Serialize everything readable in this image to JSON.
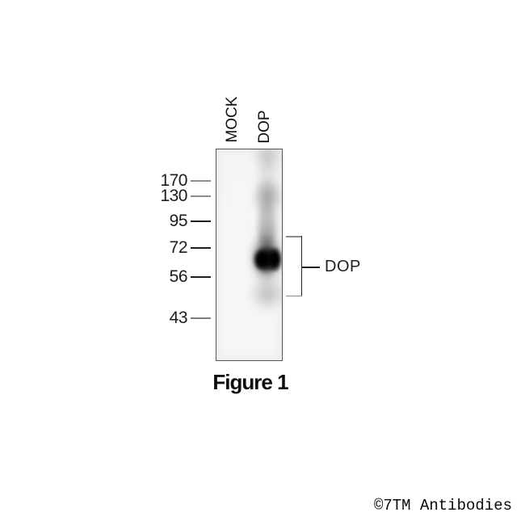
{
  "figure": {
    "caption": "Figure 1",
    "watermark": "©7TM Antibodies"
  },
  "blot": {
    "lane_labels": [
      {
        "label": "MOCK"
      },
      {
        "label": "DOP"
      }
    ],
    "markers": [
      {
        "label": "170"
      },
      {
        "label": "130"
      },
      {
        "label": "95"
      },
      {
        "label": "72"
      },
      {
        "label": "56"
      },
      {
        "label": "43"
      }
    ],
    "annotation_label": "DOP",
    "band": {
      "lane": "DOP",
      "approx_range_kda": "56-72"
    }
  },
  "colors": {
    "band": "#0a0a0a",
    "blot_background": "#f6f6f4",
    "frame": "#565656",
    "page_background": "#ffffff"
  }
}
